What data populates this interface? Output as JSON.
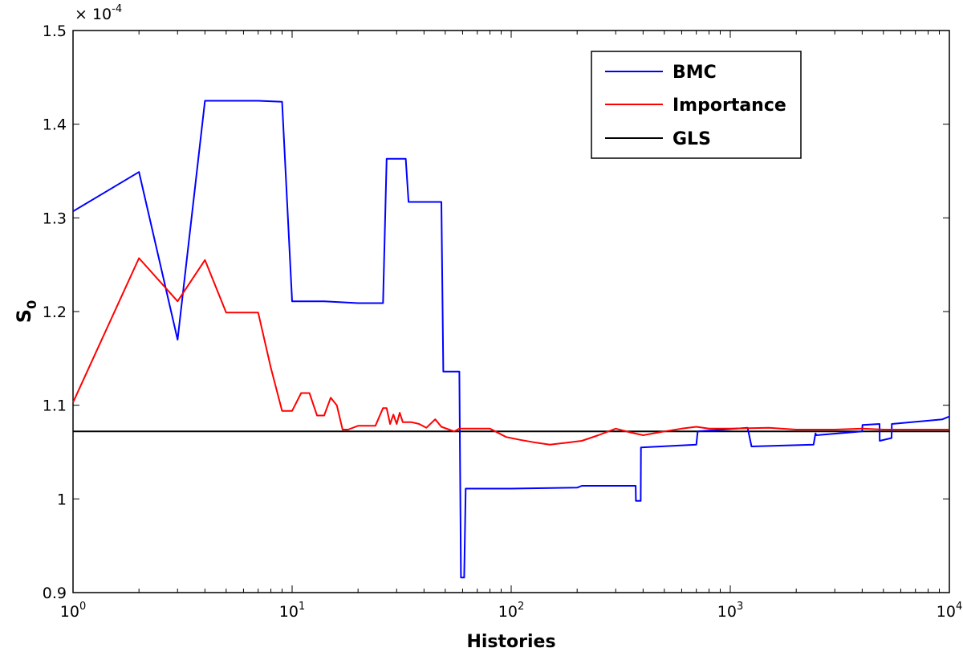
{
  "chart_data": {
    "type": "line",
    "xscale": "log",
    "xlabel": "Histories",
    "ylabel": "S",
    "ylabel_subscript": "0",
    "xlim": [
      1,
      10000
    ],
    "ylim": [
      0.9,
      1.5
    ],
    "y_multiplier": "× 10",
    "y_multiplier_exponent": "-4",
    "xticks": [
      {
        "value": 1,
        "base": "10",
        "exp": "0"
      },
      {
        "value": 10,
        "base": "10",
        "exp": "1"
      },
      {
        "value": 100,
        "base": "10",
        "exp": "2"
      },
      {
        "value": 1000,
        "base": "10",
        "exp": "3"
      },
      {
        "value": 10000,
        "base": "10",
        "exp": "4"
      }
    ],
    "yticks": [
      {
        "value": 0.9,
        "label": "0.9"
      },
      {
        "value": 1.0,
        "label": "1"
      },
      {
        "value": 1.1,
        "label": "1.1"
      },
      {
        "value": 1.2,
        "label": "1.2"
      },
      {
        "value": 1.3,
        "label": "1.3"
      },
      {
        "value": 1.4,
        "label": "1.4"
      },
      {
        "value": 1.5,
        "label": "1.5"
      }
    ],
    "grid": false,
    "legend_position": "top-right",
    "series": [
      {
        "name": "BMC",
        "color": "#0000ff",
        "x": [
          1,
          2,
          3,
          4,
          5,
          7,
          9,
          10,
          14,
          20,
          26,
          27,
          33,
          34,
          48,
          49,
          58,
          59,
          61,
          62,
          100,
          200,
          210,
          370,
          371,
          390,
          391,
          700,
          710,
          1200,
          1250,
          2400,
          2450,
          2470,
          4000,
          4010,
          4800,
          4810,
          5450,
          5460,
          9300,
          10000
        ],
        "y": [
          1.307,
          1.349,
          1.17,
          1.425,
          1.425,
          1.425,
          1.424,
          1.211,
          1.211,
          1.209,
          1.209,
          1.363,
          1.363,
          1.317,
          1.317,
          1.136,
          1.136,
          0.916,
          0.916,
          1.011,
          1.011,
          1.012,
          1.014,
          1.014,
          0.998,
          0.998,
          1.055,
          1.058,
          1.072,
          1.076,
          1.056,
          1.058,
          1.07,
          1.068,
          1.072,
          1.079,
          1.08,
          1.062,
          1.065,
          1.08,
          1.085,
          1.088
        ]
      },
      {
        "name": "Importance",
        "color": "#ff0000",
        "x": [
          1,
          2,
          3,
          4,
          5,
          7,
          8,
          9,
          10,
          11,
          12,
          13,
          14,
          15,
          16,
          17,
          18,
          20,
          24,
          26,
          27,
          28,
          29,
          30,
          31,
          32,
          35,
          38,
          41,
          45,
          48,
          55,
          58,
          62,
          80,
          95,
          110,
          130,
          150,
          180,
          210,
          250,
          300,
          350,
          400,
          500,
          600,
          700,
          800,
          1000,
          1500,
          2000,
          3000,
          4000,
          5000,
          7000,
          10000
        ],
        "y": [
          1.103,
          1.257,
          1.211,
          1.255,
          1.199,
          1.199,
          1.14,
          1.094,
          1.094,
          1.113,
          1.113,
          1.089,
          1.089,
          1.108,
          1.1,
          1.074,
          1.074,
          1.078,
          1.078,
          1.097,
          1.097,
          1.08,
          1.09,
          1.08,
          1.092,
          1.082,
          1.082,
          1.08,
          1.076,
          1.085,
          1.077,
          1.072,
          1.075,
          1.075,
          1.075,
          1.066,
          1.063,
          1.06,
          1.058,
          1.06,
          1.062,
          1.068,
          1.075,
          1.071,
          1.068,
          1.072,
          1.075,
          1.077,
          1.075,
          1.075,
          1.076,
          1.074,
          1.074,
          1.075,
          1.074,
          1.074,
          1.074
        ]
      },
      {
        "name": "GLS",
        "color": "#000000",
        "x": [
          1,
          10000
        ],
        "y": [
          1.072,
          1.072
        ]
      }
    ]
  }
}
